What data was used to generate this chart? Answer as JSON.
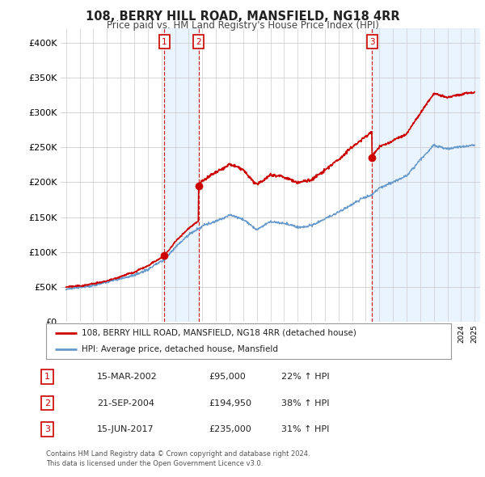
{
  "title": "108, BERRY HILL ROAD, MANSFIELD, NG18 4RR",
  "subtitle": "Price paid vs. HM Land Registry's House Price Index (HPI)",
  "legend_line1": "108, BERRY HILL ROAD, MANSFIELD, NG18 4RR (detached house)",
  "legend_line2": "HPI: Average price, detached house, Mansfield",
  "sale_labels": [
    "1",
    "2",
    "3"
  ],
  "sale_dates_str": [
    "15-MAR-2002",
    "21-SEP-2004",
    "15-JUN-2017"
  ],
  "sale_prices_str": [
    "£95,000",
    "£194,950",
    "£235,000"
  ],
  "sale_pct_str": [
    "22% ↑ HPI",
    "38% ↑ HPI",
    "31% ↑ HPI"
  ],
  "sale_years": [
    2002.21,
    2004.72,
    2017.46
  ],
  "sale_prices": [
    95000,
    194950,
    235000
  ],
  "ylim": [
    0,
    420000
  ],
  "yticks": [
    0,
    50000,
    100000,
    150000,
    200000,
    250000,
    300000,
    350000,
    400000
  ],
  "ytick_labels": [
    "£0",
    "£50K",
    "£100K",
    "£150K",
    "£200K",
    "£250K",
    "£300K",
    "£350K",
    "£400K"
  ],
  "red_color": "#cc0000",
  "blue_color": "#6699cc",
  "shade_color": "#ddeeff",
  "footnote1": "Contains HM Land Registry data © Crown copyright and database right 2024.",
  "footnote2": "This data is licensed under the Open Government Licence v3.0.",
  "background_color": "#ffffff",
  "grid_color": "#cccccc"
}
